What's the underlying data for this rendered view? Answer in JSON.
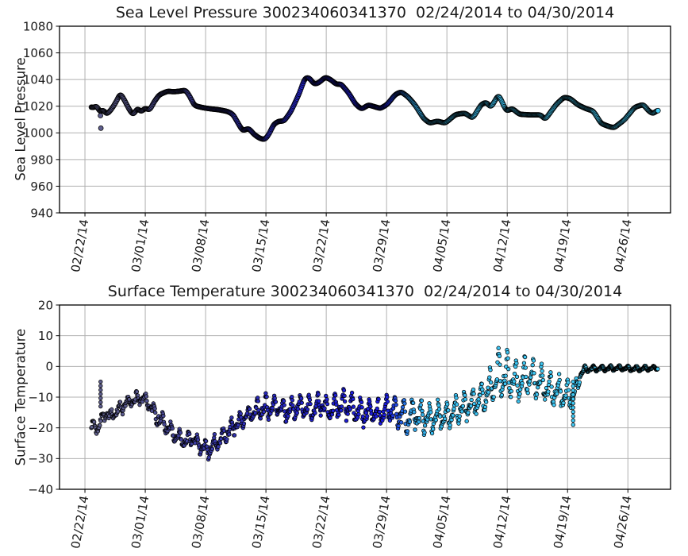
{
  "figure": {
    "background": "#ffffff",
    "grid_color": "#b0b0b0",
    "axis_color": "#000000",
    "tick_label_color": "#1a1a1a",
    "marker_edge_color": "#000000",
    "data_day_range": [
      0.74,
      66.5
    ],
    "colormap_stops": [
      [
        0.0,
        "#62628e"
      ],
      [
        0.08,
        "#55558c"
      ],
      [
        0.18,
        "#3d3da0"
      ],
      [
        0.3,
        "#2a2abc"
      ],
      [
        0.42,
        "#2020d2"
      ],
      [
        0.52,
        "#1b1be0"
      ],
      [
        0.545,
        "#2257e2"
      ],
      [
        0.565,
        "#2fa3e8"
      ],
      [
        0.6,
        "#38bdf0"
      ],
      [
        0.8,
        "#3fc7f3"
      ],
      [
        1.0,
        "#41cbf5"
      ]
    ]
  },
  "chart_data": [
    {
      "type": "scatter",
      "title": "Sea Level Pressure 300234060341370  02/24/2014 to 04/30/2014",
      "ylabel": "Sea Level Pressure",
      "ylim": [
        940,
        1080
      ],
      "yticks": [
        1080,
        1060,
        1040,
        1020,
        1000,
        980,
        960,
        940
      ],
      "xlim_days": [
        -2.95,
        67.95
      ],
      "xtick_days": [
        0,
        7,
        14,
        21,
        28,
        35,
        42,
        49,
        56,
        63
      ],
      "xtick_labels": [
        "02/22/14",
        "03/01/14",
        "03/08/14",
        "03/15/14",
        "03/22/14",
        "03/29/14",
        "04/05/14",
        "04/12/14",
        "04/19/14",
        "04/26/14"
      ],
      "grid": true,
      "legend": "none",
      "marker_radius": 3.0,
      "sample_step_days": 0.08,
      "series_keypoints": [
        [
          0.74,
          1020
        ],
        [
          1.0,
          1018.3
        ],
        [
          1.35,
          1021
        ],
        [
          1.75,
          1015
        ],
        [
          2.1,
          1017.8
        ],
        [
          2.5,
          1013.8
        ],
        [
          3.0,
          1017
        ],
        [
          3.6,
          1023
        ],
        [
          4.1,
          1029.8
        ],
        [
          4.55,
          1025
        ],
        [
          5.1,
          1018
        ],
        [
          5.6,
          1013.2
        ],
        [
          6.1,
          1018.8
        ],
        [
          6.5,
          1015.6
        ],
        [
          7.0,
          1018.8
        ],
        [
          7.5,
          1016.8
        ],
        [
          8.0,
          1023
        ],
        [
          8.6,
          1028.5
        ],
        [
          9.6,
          1031.3
        ],
        [
          10.3,
          1030.8
        ],
        [
          11.0,
          1031.3
        ],
        [
          11.7,
          1032
        ],
        [
          12.2,
          1027
        ],
        [
          12.7,
          1020.5
        ],
        [
          13.6,
          1019
        ],
        [
          14.6,
          1018
        ],
        [
          15.6,
          1017.3
        ],
        [
          16.6,
          1016
        ],
        [
          17.2,
          1013.8
        ],
        [
          17.7,
          1008
        ],
        [
          18.3,
          1001.5
        ],
        [
          19.0,
          1003.5
        ],
        [
          19.6,
          999
        ],
        [
          20.3,
          995.8
        ],
        [
          20.9,
          995
        ],
        [
          21.4,
          999.5
        ],
        [
          21.9,
          1006.5
        ],
        [
          22.5,
          1008.8
        ],
        [
          23.1,
          1008.8
        ],
        [
          23.9,
          1016
        ],
        [
          24.9,
          1030
        ],
        [
          25.5,
          1041
        ],
        [
          26.0,
          1041.5
        ],
        [
          26.6,
          1036.5
        ],
        [
          27.1,
          1037.5
        ],
        [
          27.9,
          1041.8
        ],
        [
          28.5,
          1040
        ],
        [
          29.2,
          1036.3
        ],
        [
          29.7,
          1036.8
        ],
        [
          30.6,
          1030
        ],
        [
          31.4,
          1021.5
        ],
        [
          32.1,
          1017.8
        ],
        [
          32.9,
          1021
        ],
        [
          33.5,
          1019.8
        ],
        [
          34.3,
          1018.3
        ],
        [
          35.1,
          1021.5
        ],
        [
          36.0,
          1028.8
        ],
        [
          36.7,
          1030.8
        ],
        [
          37.5,
          1027
        ],
        [
          38.3,
          1021
        ],
        [
          39.3,
          1010.8
        ],
        [
          40.0,
          1007.3
        ],
        [
          40.9,
          1008.8
        ],
        [
          41.8,
          1007.3
        ],
        [
          43.0,
          1013.8
        ],
        [
          44.1,
          1014.8
        ],
        [
          45.0,
          1011
        ],
        [
          46.0,
          1021.5
        ],
        [
          46.6,
          1023
        ],
        [
          47.1,
          1019
        ],
        [
          48.0,
          1028.8
        ],
        [
          48.9,
          1016.3
        ],
        [
          49.6,
          1018.3
        ],
        [
          50.4,
          1014
        ],
        [
          51.6,
          1013.5
        ],
        [
          52.9,
          1013.5
        ],
        [
          53.4,
          1010
        ],
        [
          54.7,
          1021.5
        ],
        [
          55.6,
          1026.8
        ],
        [
          56.3,
          1025.8
        ],
        [
          57.2,
          1021
        ],
        [
          58.1,
          1018.3
        ],
        [
          59.0,
          1016.3
        ],
        [
          59.9,
          1007
        ],
        [
          60.8,
          1004.8
        ],
        [
          61.4,
          1003.8
        ],
        [
          62.6,
          1009.8
        ],
        [
          63.8,
          1019.3
        ],
        [
          64.8,
          1021.3
        ],
        [
          65.4,
          1016.5
        ],
        [
          65.9,
          1014.3
        ],
        [
          66.5,
          1017.3
        ]
      ],
      "outliers": [
        [
          1.8,
          1013
        ],
        [
          1.85,
          1003.5
        ]
      ]
    },
    {
      "type": "scatter",
      "title": "Surface Temperature 300234060341370  02/24/2014 to 04/30/2014",
      "ylabel": "Surface Temperature",
      "ylim": [
        -40,
        20
      ],
      "yticks": [
        20,
        10,
        0,
        -10,
        -20,
        -30,
        -40
      ],
      "xlim_days": [
        -2.95,
        67.95
      ],
      "xtick_days": [
        0,
        7,
        14,
        21,
        28,
        35,
        42,
        49,
        56,
        63
      ],
      "xtick_labels": [
        "02/22/14",
        "03/01/14",
        "03/08/14",
        "03/15/14",
        "03/22/14",
        "03/29/14",
        "04/05/14",
        "04/12/14",
        "04/19/14",
        "04/26/14"
      ],
      "grid": true,
      "legend": "none",
      "marker_radius": 2.3,
      "sample_step_days": 0.055,
      "diurnal": {
        "primary": 0.72,
        "harmonic2": 0.38
      },
      "seed": 7,
      "tail": {
        "start_day": 57.45,
        "step": 0.03
      },
      "baseline_keypoints": [
        [
          0.74,
          -19,
          1.5,
          0.8
        ],
        [
          1.5,
          -20,
          1.8,
          1.0
        ],
        [
          2.2,
          -15.5,
          1.8,
          0.9
        ],
        [
          3.0,
          -16,
          2.0,
          1.0
        ],
        [
          4.0,
          -14,
          2.0,
          1.0
        ],
        [
          5.0,
          -12,
          2.0,
          0.9
        ],
        [
          6.0,
          -10.5,
          2.0,
          0.8
        ],
        [
          6.8,
          -10.5,
          2.0,
          0.8
        ],
        [
          7.6,
          -13,
          2.5,
          1.0
        ],
        [
          8.6,
          -17,
          2.5,
          1.2
        ],
        [
          9.6,
          -20,
          2.5,
          1.2
        ],
        [
          10.6,
          -23,
          2.5,
          1.0
        ],
        [
          11.6,
          -24.5,
          2.0,
          1.0
        ],
        [
          12.4,
          -23.5,
          2.0,
          1.0
        ],
        [
          13.4,
          -26,
          2.5,
          1.0
        ],
        [
          14.3,
          -27.5,
          2.2,
          1.0
        ],
        [
          15.2,
          -25,
          2.5,
          1.0
        ],
        [
          16.2,
          -22.5,
          2.8,
          1.0
        ],
        [
          17.2,
          -19.5,
          2.8,
          1.0
        ],
        [
          18.2,
          -17.5,
          2.5,
          1.0
        ],
        [
          19.2,
          -15.5,
          2.5,
          1.1
        ],
        [
          20.2,
          -14,
          4.0,
          1.2
        ],
        [
          21.2,
          -13.5,
          3.5,
          1.2
        ],
        [
          22.2,
          -13,
          3.0,
          1.2
        ],
        [
          23.2,
          -15,
          3.0,
          1.2
        ],
        [
          24.2,
          -13.5,
          3.5,
          1.2
        ],
        [
          25.2,
          -13,
          3.5,
          1.2
        ],
        [
          26.2,
          -14,
          3.5,
          1.2
        ],
        [
          27.2,
          -12.5,
          3.5,
          1.2
        ],
        [
          28.2,
          -14,
          3.5,
          1.2
        ],
        [
          29.2,
          -13.5,
          4.0,
          1.2
        ],
        [
          30.2,
          -12.5,
          4.5,
          1.5
        ],
        [
          31.2,
          -14,
          4.5,
          1.5
        ],
        [
          32.2,
          -15,
          4.5,
          1.5
        ],
        [
          33.2,
          -14.5,
          4.0,
          1.5
        ],
        [
          34.2,
          -15.5,
          4.0,
          1.5
        ],
        [
          35.2,
          -14,
          4.0,
          1.5
        ],
        [
          36.2,
          -15,
          4.5,
          1.5
        ],
        [
          37.2,
          -17,
          5.0,
          1.5
        ],
        [
          38.2,
          -15.5,
          4.5,
          1.5
        ],
        [
          39.2,
          -16.5,
          5.0,
          1.5
        ],
        [
          40.2,
          -17.5,
          5.0,
          1.5
        ],
        [
          41.2,
          -15.5,
          4.5,
          1.5
        ],
        [
          42.2,
          -16.5,
          4.5,
          1.5
        ],
        [
          43.2,
          -14.5,
          4.5,
          1.5
        ],
        [
          44.2,
          -13,
          4.5,
          1.5
        ],
        [
          45.2,
          -11.5,
          4.5,
          1.5
        ],
        [
          46.2,
          -10,
          4.5,
          1.5
        ],
        [
          47.2,
          -7,
          6.0,
          1.8
        ],
        [
          48.2,
          -2.5,
          8.5,
          1.5
        ],
        [
          49.2,
          -4,
          7.0,
          1.8
        ],
        [
          50.2,
          -5,
          6.5,
          1.8
        ],
        [
          51.2,
          -3.5,
          6.0,
          1.8
        ],
        [
          52.2,
          -4.5,
          5.5,
          1.8
        ],
        [
          53.2,
          -6,
          5.0,
          1.6
        ],
        [
          54.2,
          -8,
          5.0,
          1.5
        ],
        [
          55.2,
          -9,
          5.0,
          1.5
        ],
        [
          56.2,
          -10,
          4.5,
          1.5
        ],
        [
          57.0,
          -8,
          3.0,
          1.0
        ],
        [
          57.5,
          -2.5,
          1.0,
          0.3
        ],
        [
          58.0,
          -0.9,
          1.0,
          0.2
        ],
        [
          60.0,
          -0.7,
          0.9,
          0.15
        ],
        [
          62.0,
          -0.5,
          0.8,
          0.15
        ],
        [
          64.0,
          -0.8,
          0.9,
          0.15
        ],
        [
          66.5,
          -0.5,
          0.6,
          0.1
        ]
      ],
      "streaks": [
        {
          "day": 1.82,
          "from": -5,
          "to": -13,
          "count": 7
        },
        {
          "day": 56.65,
          "from": -5,
          "to": -19,
          "count": 11
        }
      ]
    }
  ]
}
